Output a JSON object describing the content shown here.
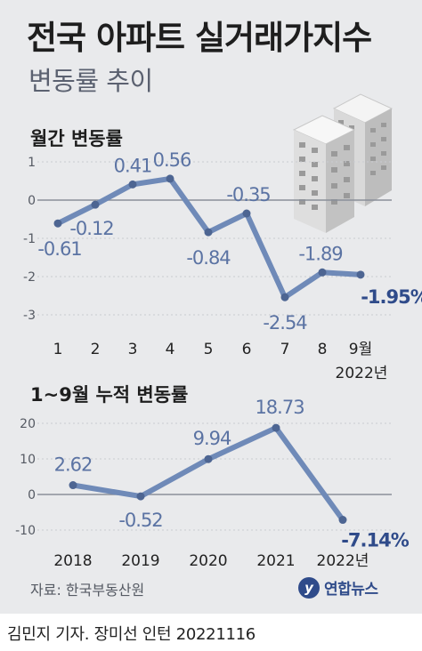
{
  "title": "전국 아파트 실거래가지수",
  "subtitle": "변동률 추이",
  "source": "자료: 한국부동산원",
  "logo": {
    "mark": "y",
    "text": "연합뉴스"
  },
  "credit": "김민지 기자. 장미선 인턴  20221116",
  "colors": {
    "line": "#6f8ab8",
    "label": "#5b73a3",
    "highlight": "#2f4b8a",
    "axis": "#555a63"
  },
  "illustration": "apartment-buildings-icon",
  "chart_data": [
    {
      "type": "line",
      "title": "월간 변동률",
      "categories": [
        "1",
        "2",
        "3",
        "4",
        "5",
        "6",
        "7",
        "8",
        "9월"
      ],
      "values": [
        -0.61,
        -0.12,
        0.41,
        0.56,
        -0.84,
        -0.35,
        -2.54,
        -1.89,
        -1.95
      ],
      "data_labels": [
        "-0.61",
        "-0.12",
        "0.41",
        "0.56",
        "-0.84",
        "-0.35",
        "-2.54",
        "-1.89",
        "-1.95%"
      ],
      "yticks": [
        "1",
        "0",
        "-1",
        "-2",
        "-3"
      ],
      "ylim": [
        -3,
        1
      ],
      "year_note": "2022년",
      "grid": true
    },
    {
      "type": "line",
      "title": "1~9월 누적 변동률",
      "categories": [
        "2018",
        "2019",
        "2020",
        "2021",
        "2022년"
      ],
      "values": [
        2.62,
        -0.52,
        9.94,
        18.73,
        -7.14
      ],
      "data_labels": [
        "2.62",
        "-0.52",
        "9.94",
        "18.73",
        "-7.14%"
      ],
      "yticks": [
        "20",
        "10",
        "0",
        "-10"
      ],
      "ylim": [
        -10,
        20
      ],
      "grid": true
    }
  ]
}
